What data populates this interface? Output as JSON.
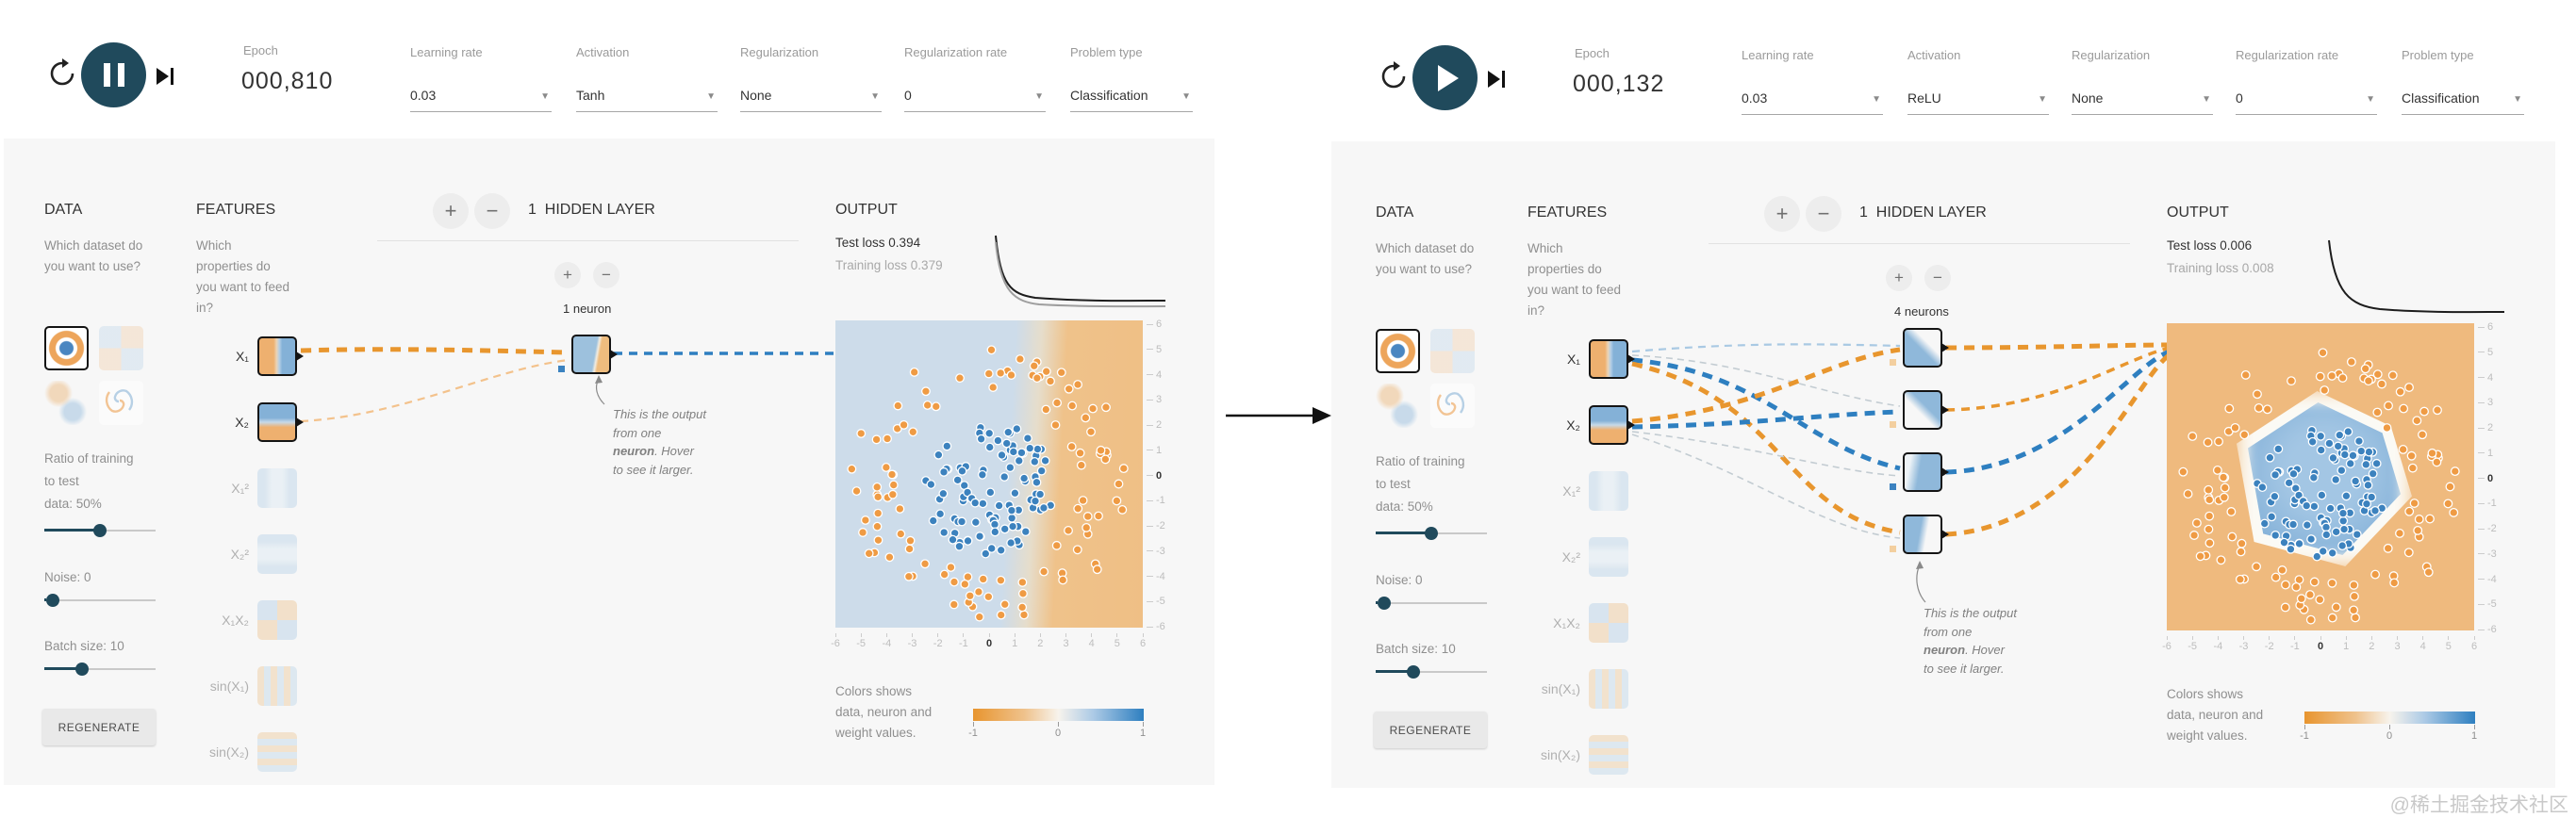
{
  "page": {
    "watermark": "@稀土掘金技术社区"
  },
  "colors": {
    "accent_navy": "#204a5c",
    "weight_orange": "#e8962e",
    "weight_orange_light": "#f3c28c",
    "weight_blue": "#2e7fc0",
    "weight_blue_light": "#a9c9e3",
    "weight_gray": "#c3ccd2",
    "point_blue": "#3c82be",
    "point_orange": "#ef9b44",
    "panel_bg": "#f7f7f7"
  },
  "plots_meta": {
    "dataset": "circle",
    "x_range": [
      -6,
      6
    ],
    "y_range": [
      -6,
      6
    ],
    "blue_points": 100,
    "orange_points": 110
  },
  "left": {
    "toolbar": {
      "epoch_label": "Epoch",
      "epoch_value": "000,810",
      "play_state": "pause",
      "dropdowns": [
        {
          "label": "Learning rate",
          "value": "0.03"
        },
        {
          "label": "Activation",
          "value": "Tanh"
        },
        {
          "label": "Regularization",
          "value": "None"
        },
        {
          "label": "Regularization rate",
          "value": "0"
        },
        {
          "label": "Problem type",
          "value": "Classification"
        }
      ]
    },
    "data_col": {
      "title": "DATA",
      "question": "Which dataset do you want to use?",
      "datasets": [
        {
          "name": "circle",
          "selected": true
        },
        {
          "name": "exclusive-or",
          "selected": false
        },
        {
          "name": "gaussian",
          "selected": false
        },
        {
          "name": "spiral",
          "selected": false
        }
      ],
      "ratio_lines": [
        "Ratio of training",
        "to test",
        "data:  50%"
      ],
      "noise_label": "Noise:  0",
      "batch_label": "Batch size:  10",
      "regenerate_label": "REGENERATE",
      "slider_positions": {
        "ratio": 0.5,
        "noise": 0.02,
        "batch": 0.32
      }
    },
    "features_col": {
      "title": "FEATURES",
      "question": "Which properties do you want to feed in?",
      "items": [
        {
          "label": "X₁",
          "active": true,
          "pattern": "x1"
        },
        {
          "label": "X₂",
          "active": true,
          "pattern": "x2"
        },
        {
          "label": "X₁²",
          "active": false,
          "pattern": "x1sq"
        },
        {
          "label": "X₂²",
          "active": false,
          "pattern": "x2sq"
        },
        {
          "label": "X₁X₂",
          "active": false,
          "pattern": "x1x2"
        },
        {
          "label": "sin(X₁)",
          "active": false,
          "pattern": "sinx1"
        },
        {
          "label": "sin(X₂)",
          "active": false,
          "pattern": "sinx2"
        }
      ]
    },
    "network": {
      "layers_count": "1",
      "layers_label": "HIDDEN LAYER",
      "neurons_label": "1 neuron",
      "neurons": [
        {
          "pattern": "np-single",
          "bias": "blue"
        }
      ],
      "connections": [
        {
          "from": "X1",
          "to": "n1",
          "sign": "orange",
          "strength": "thick"
        },
        {
          "from": "X2",
          "to": "n1",
          "sign": "orange-light",
          "strength": "thin2"
        }
      ],
      "output_weights": [
        {
          "from": "n1",
          "sign": "blue",
          "strength": "medium"
        }
      ],
      "annotation": {
        "line1": "This is the output",
        "line2": "from one",
        "bold": "neuron",
        "after_bold": ". Hover",
        "line4": "to see it larger."
      }
    },
    "output": {
      "title": "OUTPUT",
      "test_loss_label": "Test loss",
      "test_loss_value": "0.394",
      "training_loss_label": "Training loss",
      "training_loss_value": "0.379",
      "loss_curves": [
        "test",
        "training"
      ],
      "decision": "blue-left-orange-right",
      "x_ticks": [
        "-6",
        "-5",
        "-4",
        "-3",
        "-2",
        "-1",
        "0",
        "1",
        "2",
        "3",
        "4",
        "5",
        "6"
      ],
      "y_ticks": [
        "6",
        "5",
        "4",
        "3",
        "2",
        "1",
        "0",
        "-1",
        "-2",
        "-3",
        "-4",
        "-5",
        "-6"
      ],
      "legend_lines": [
        "Colors shows",
        "data, neuron and",
        "weight values."
      ],
      "colormap_ticks": [
        "-1",
        "0",
        "1"
      ]
    }
  },
  "right": {
    "toolbar": {
      "epoch_label": "Epoch",
      "epoch_value": "000,132",
      "play_state": "play",
      "dropdowns": [
        {
          "label": "Learning rate",
          "value": "0.03"
        },
        {
          "label": "Activation",
          "value": "ReLU"
        },
        {
          "label": "Regularization",
          "value": "None"
        },
        {
          "label": "Regularization rate",
          "value": "0"
        },
        {
          "label": "Problem type",
          "value": "Classification"
        }
      ]
    },
    "data_col": {
      "title": "DATA",
      "question": "Which dataset do you want to use?",
      "datasets": [
        {
          "name": "circle",
          "selected": true
        },
        {
          "name": "exclusive-or",
          "selected": false
        },
        {
          "name": "gaussian",
          "selected": false
        },
        {
          "name": "spiral",
          "selected": false
        }
      ],
      "ratio_lines": [
        "Ratio of training",
        "to test",
        "data:  50%"
      ],
      "noise_label": "Noise:  0",
      "batch_label": "Batch size:  10",
      "regenerate_label": "REGENERATE",
      "slider_positions": {
        "ratio": 0.5,
        "noise": 0.02,
        "batch": 0.32
      }
    },
    "features_col": {
      "title": "FEATURES",
      "question": "Which properties do you want to feed in?",
      "items": [
        {
          "label": "X₁",
          "active": true,
          "pattern": "x1"
        },
        {
          "label": "X₂",
          "active": true,
          "pattern": "x2"
        },
        {
          "label": "X₁²",
          "active": false,
          "pattern": "x1sq"
        },
        {
          "label": "X₂²",
          "active": false,
          "pattern": "x2sq"
        },
        {
          "label": "X₁X₂",
          "active": false,
          "pattern": "x1x2"
        },
        {
          "label": "sin(X₁)",
          "active": false,
          "pattern": "sinx1"
        },
        {
          "label": "sin(X₂)",
          "active": false,
          "pattern": "sinx2"
        }
      ]
    },
    "network": {
      "layers_count": "1",
      "layers_label": "HIDDEN LAYER",
      "neurons_label": "4 neurons",
      "neurons": [
        {
          "pattern": "np-r1",
          "bias": "orange-light"
        },
        {
          "pattern": "np-r2",
          "bias": "orange-light"
        },
        {
          "pattern": "np-r3",
          "bias": "blue"
        },
        {
          "pattern": "np-r4",
          "bias": "orange-light"
        }
      ],
      "connections": [
        {
          "from": "X1",
          "to": "n1",
          "sign": "blue-light",
          "strength": "thin2"
        },
        {
          "from": "X1",
          "to": "n2",
          "sign": "gray",
          "strength": "thin"
        },
        {
          "from": "X1",
          "to": "n3",
          "sign": "blue",
          "strength": "thick"
        },
        {
          "from": "X1",
          "to": "n4",
          "sign": "orange",
          "strength": "thick"
        },
        {
          "from": "X2",
          "to": "n1",
          "sign": "orange",
          "strength": "thick"
        },
        {
          "from": "X2",
          "to": "n2",
          "sign": "blue",
          "strength": "thick"
        },
        {
          "from": "X2",
          "to": "n3",
          "sign": "gray",
          "strength": "thin"
        },
        {
          "from": "X2",
          "to": "n4",
          "sign": "gray",
          "strength": "thin"
        }
      ],
      "output_weights": [
        {
          "from": "n1",
          "sign": "orange",
          "strength": "thick"
        },
        {
          "from": "n2",
          "sign": "orange",
          "strength": "medium"
        },
        {
          "from": "n3",
          "sign": "blue",
          "strength": "thick"
        },
        {
          "from": "n4",
          "sign": "orange",
          "strength": "thick"
        }
      ],
      "annotation": {
        "line1": "This is the output",
        "line2": "from one",
        "bold": "neuron",
        "after_bold": ". Hover",
        "line4": "to see it larger."
      }
    },
    "output": {
      "title": "OUTPUT",
      "test_loss_label": "Test loss",
      "test_loss_value": "0.006",
      "training_loss_label": "Training loss",
      "training_loss_value": "0.008",
      "loss_curves": [
        "test"
      ],
      "decision": "orange-with-blue-center",
      "x_ticks": [
        "-6",
        "-5",
        "-4",
        "-3",
        "-2",
        "-1",
        "0",
        "1",
        "2",
        "3",
        "4",
        "5",
        "6"
      ],
      "y_ticks": [
        "6",
        "5",
        "4",
        "3",
        "2",
        "1",
        "0",
        "-1",
        "-2",
        "-3",
        "-4",
        "-5",
        "-6"
      ],
      "legend_lines": [
        "Colors shows",
        "data, neuron and",
        "weight values."
      ],
      "colormap_ticks": [
        "-1",
        "0",
        "1"
      ]
    }
  }
}
